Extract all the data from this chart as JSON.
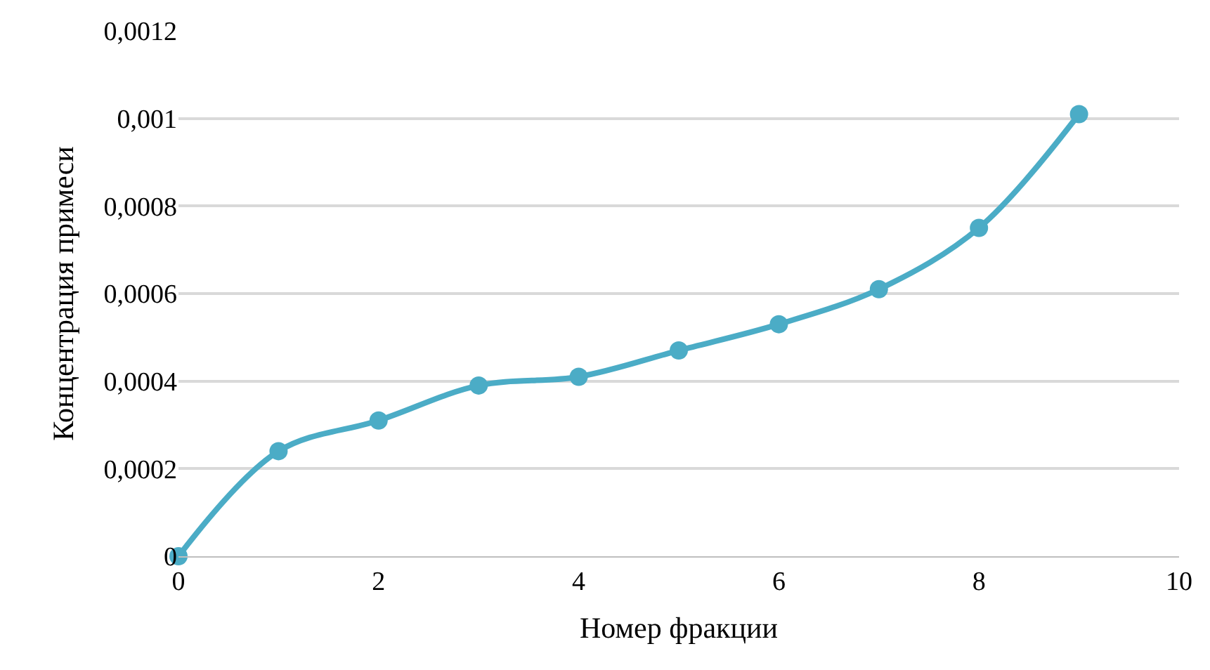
{
  "chart_data": {
    "type": "line",
    "xlabel": "Номер фракции",
    "ylabel": "Концентрация примеси",
    "x": [
      0,
      1,
      2,
      3,
      4,
      5,
      6,
      7,
      8,
      9
    ],
    "series": [
      {
        "color": "#4bacc6",
        "values": [
          0,
          0.00024,
          0.00031,
          0.00039,
          0.00041,
          0.00047,
          0.00053,
          0.00061,
          0.00075,
          0.00101
        ]
      }
    ],
    "xlim": [
      0,
      10
    ],
    "xticks": [
      0,
      2,
      4,
      6,
      8,
      10
    ],
    "ylim": [
      0,
      0.0012
    ],
    "yticks": [
      0,
      {
        "value": 0.0002,
        "label": "0,0002"
      },
      {
        "value": 0.0004,
        "label": "0,0004"
      },
      {
        "value": 0.0006,
        "label": "0,0006"
      },
      {
        "value": 0.0008,
        "label": "0,0008"
      },
      {
        "value": 0.001,
        "label": "0,001"
      },
      {
        "value": 0.0012,
        "label": "0,0012"
      }
    ],
    "grid": "y",
    "marker": "circle",
    "line_style": "solid",
    "legend": false
  }
}
